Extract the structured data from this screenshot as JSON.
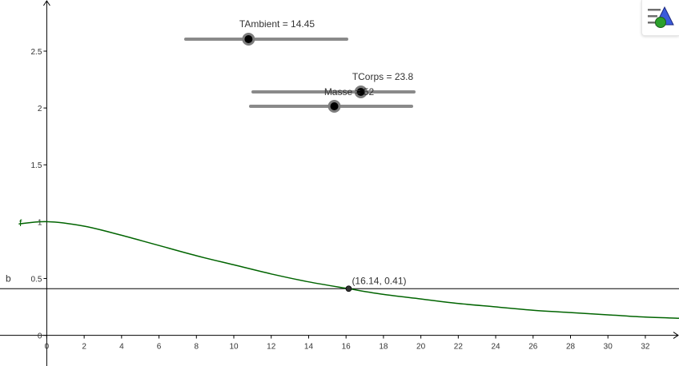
{
  "colors": {
    "function": "#006400",
    "axis": "#000000",
    "line_b": "#000000",
    "point": "#333333",
    "slider_track": "#8a8a8a",
    "slider_knob": "#000000",
    "icon_green": "#2ca02c",
    "icon_blue": "#3b5bdb"
  },
  "sliders": [
    {
      "id": "tambient",
      "label": "TAmbient = 14.45",
      "value_fraction": 0.39
    },
    {
      "id": "tcorps",
      "label": "TCorps = 23.8",
      "value_fraction": 0.67
    },
    {
      "id": "masse",
      "label": "Masse = 52",
      "value_fraction": 0.52
    }
  ],
  "labels": {
    "function": "f",
    "line": "b",
    "point": "(16.14, 0.41)"
  },
  "style_bar_icon": "graphics-style-bar-icon",
  "chart_data": {
    "type": "line",
    "xlim": [
      -2.5,
      33.8
    ],
    "ylim": [
      -0.27,
      2.95
    ],
    "x_ticks": [
      0,
      2,
      4,
      6,
      8,
      10,
      12,
      14,
      16,
      18,
      20,
      22,
      24,
      26,
      28,
      30,
      32
    ],
    "y_ticks": [
      0,
      0.5,
      1,
      1.5,
      2,
      2.5
    ],
    "y_tick_labels": [
      "0",
      "0.5",
      "1",
      "1.5",
      "2",
      "2.5"
    ],
    "grid": false,
    "series": [
      {
        "name": "f",
        "x": [
          -1.5,
          0,
          2,
          4,
          6,
          8,
          10,
          12,
          14,
          16.14,
          18,
          20,
          22,
          24,
          26,
          28,
          30,
          32,
          33.8
        ],
        "y": [
          0.98,
          1.0,
          0.96,
          0.88,
          0.79,
          0.7,
          0.62,
          0.54,
          0.47,
          0.41,
          0.36,
          0.32,
          0.28,
          0.25,
          0.22,
          0.2,
          0.18,
          0.16,
          0.15
        ]
      }
    ],
    "horizontal_line": {
      "name": "b",
      "y": 0.41
    },
    "points": [
      {
        "x": 16.14,
        "y": 0.41,
        "label": "(16.14, 0.41)"
      }
    ]
  }
}
